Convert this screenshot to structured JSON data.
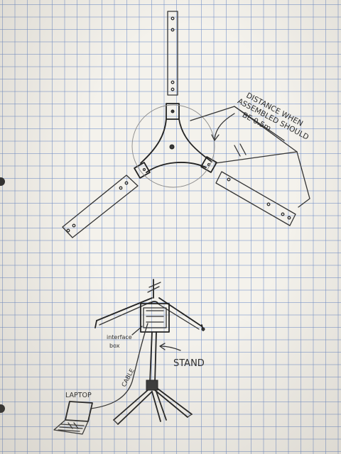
{
  "annotations": {
    "distance_note_line1": "DISTANCE WHEN",
    "distance_note_line2": "ASSEMBLED SHOULD",
    "distance_note_line3": "BE 0.5m",
    "interface_box_line1": "interface",
    "interface_box_line2": "box",
    "stand_label": "STAND",
    "cable_label": "CABLE",
    "laptop_label": "LAPTOP"
  },
  "colors": {
    "paper": "#f4f2ec",
    "grid": "#6e8cc8",
    "ink": "#333333"
  }
}
